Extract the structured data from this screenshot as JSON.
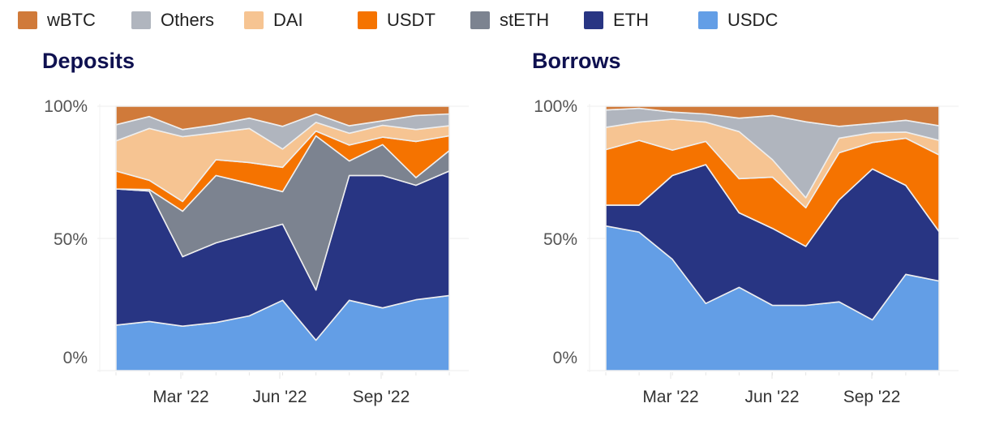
{
  "legend": [
    {
      "name": "wBTC",
      "color": "#d07a3a"
    },
    {
      "name": "Others",
      "color": "#b0b5be"
    },
    {
      "name": "DAI",
      "color": "#f6c492"
    },
    {
      "name": "USDT",
      "color": "#f57300"
    },
    {
      "name": "stETH",
      "color": "#7c8390"
    },
    {
      "name": "ETH",
      "color": "#283583"
    },
    {
      "name": "USDC",
      "color": "#639ee6"
    }
  ],
  "chart_data": [
    {
      "type": "area",
      "stacked": "percent",
      "title": "Deposits",
      "x": [
        "Jan '22",
        "Feb '22",
        "Mar '22",
        "Apr '22",
        "May '22",
        "Jun '22",
        "Jul '22",
        "Aug '22",
        "Sep '22",
        "Oct '22",
        "Nov '22"
      ],
      "x_tick_labels": [
        "Mar '22",
        "Jun '22",
        "Sep '22"
      ],
      "y_tick_labels": [
        "0%",
        "50%",
        "100%"
      ],
      "ylim": [
        0,
        100
      ],
      "grid": true,
      "legend": "top",
      "series": [
        {
          "name": "USDC",
          "values": [
            17.2,
            18.6,
            16.8,
            18.2,
            20.7,
            26.6,
            11.5,
            26.6,
            23.7,
            26.8,
            28.4
          ]
        },
        {
          "name": "ETH",
          "values": [
            51.5,
            49.3,
            26.3,
            30.1,
            31.2,
            28.8,
            19.0,
            47.2,
            50.1,
            43.3,
            47.1
          ]
        },
        {
          "name": "stETH",
          "values": [
            0,
            0.6,
            17.2,
            25.5,
            18.9,
            12.3,
            58.3,
            5.5,
            11.7,
            2.9,
            7.7
          ]
        },
        {
          "name": "USDT",
          "values": [
            6.8,
            3.5,
            3.7,
            6.0,
            7.9,
            9.2,
            1.8,
            6.0,
            2.8,
            13.7,
            5.6
          ]
        },
        {
          "name": "DAI",
          "values": [
            11.4,
            19.6,
            24.5,
            10.2,
            12.9,
            6.9,
            3.3,
            4.5,
            4.5,
            4.5,
            3.8
          ]
        },
        {
          "name": "Others",
          "values": [
            6.1,
            4.5,
            2.7,
            3.0,
            3.9,
            8.6,
            3.2,
            2.8,
            1.7,
            5.3,
            4.5
          ]
        },
        {
          "name": "wBTC",
          "values": [
            7.0,
            3.9,
            8.8,
            7.0,
            4.5,
            7.6,
            2.9,
            7.4,
            5.5,
            3.5,
            2.9
          ]
        }
      ]
    },
    {
      "type": "area",
      "stacked": "percent",
      "title": "Borrows",
      "x": [
        "Jan '22",
        "Feb '22",
        "Mar '22",
        "Apr '22",
        "May '22",
        "Jun '22",
        "Jul '22",
        "Aug '22",
        "Sep '22",
        "Oct '22",
        "Nov '22"
      ],
      "x_tick_labels": [
        "Mar '22",
        "Jun '22",
        "Sep '22"
      ],
      "y_tick_labels": [
        "0%",
        "50%",
        "100%"
      ],
      "ylim": [
        0,
        100
      ],
      "grid": true,
      "legend": "top",
      "series": [
        {
          "name": "USDC",
          "values": [
            54.7,
            52.4,
            42.1,
            25.4,
            31.5,
            24.7,
            24.7,
            26.0,
            19.2,
            36.4,
            33.9
          ]
        },
        {
          "name": "ETH",
          "values": [
            7.9,
            10.2,
            31.7,
            52.5,
            28.2,
            29.1,
            22.3,
            38.6,
            57.1,
            33.7,
            18.7
          ]
        },
        {
          "name": "stETH",
          "values": [
            0,
            0,
            0,
            0,
            0,
            0,
            0,
            0,
            0,
            0,
            0
          ]
        },
        {
          "name": "USDT",
          "values": [
            21.0,
            24.5,
            9.6,
            8.8,
            12.9,
            19.4,
            14.6,
            17.8,
            10.0,
            17.8,
            29.0
          ]
        },
        {
          "name": "DAI",
          "values": [
            8.4,
            6.9,
            11.7,
            7.3,
            17.8,
            6.6,
            3.8,
            5.5,
            3.7,
            2.3,
            5.5
          ]
        },
        {
          "name": "Others",
          "values": [
            6.6,
            5.2,
            2.7,
            3.1,
            5.1,
            16.7,
            28.7,
            4.5,
            3.5,
            4.5,
            5.5
          ]
        },
        {
          "name": "wBTC",
          "values": [
            1.4,
            0.8,
            2.2,
            2.9,
            4.5,
            3.5,
            5.9,
            7.6,
            6.5,
            5.3,
            7.4
          ]
        }
      ]
    }
  ]
}
